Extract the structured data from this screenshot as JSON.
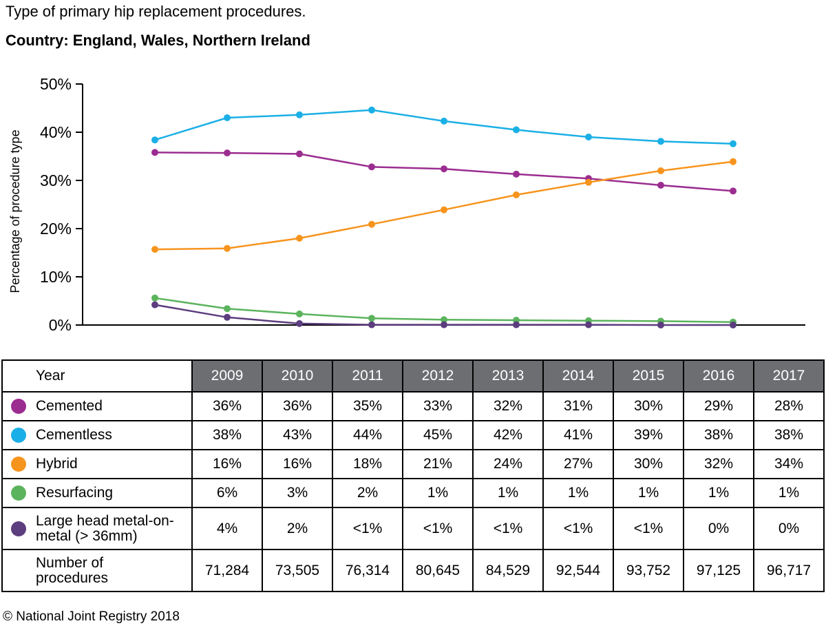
{
  "title": "Type of primary hip replacement procedures.",
  "subtitle": "Country: England, Wales, Northern Ireland",
  "footer": "© National Joint Registry 2018",
  "chart_data": {
    "type": "line",
    "ylabel": "Percentage of procedure type",
    "xlabel": "",
    "ylim": [
      0,
      50
    ],
    "yticks": [
      0,
      10,
      20,
      30,
      40,
      50
    ],
    "ytick_labels": [
      "0%",
      "10%",
      "20%",
      "30%",
      "40%",
      "50%"
    ],
    "x": [
      "2009",
      "2010",
      "2011",
      "2012",
      "2013",
      "2014",
      "2015",
      "2016",
      "2017"
    ],
    "series": [
      {
        "name": "Cemented",
        "color": "#9b2d90",
        "values": [
          35.8,
          35.7,
          35.5,
          32.8,
          32.4,
          31.3,
          30.4,
          29.0,
          27.8
        ]
      },
      {
        "name": "Cementless",
        "color": "#1aafe6",
        "values": [
          38.4,
          43.0,
          43.6,
          44.6,
          42.3,
          40.5,
          39.0,
          38.1,
          37.6
        ]
      },
      {
        "name": "Hybrid",
        "color": "#f7941d",
        "values": [
          15.7,
          15.9,
          18.0,
          20.9,
          23.9,
          27.0,
          29.6,
          32.0,
          33.9
        ]
      },
      {
        "name": "Resurfacing",
        "color": "#5bb45d",
        "values": [
          5.6,
          3.4,
          2.3,
          1.4,
          1.1,
          1.0,
          0.9,
          0.8,
          0.6
        ]
      },
      {
        "name": "Large head metal-on-metal (> 36mm)",
        "color": "#5c3d7e",
        "values": [
          4.2,
          1.6,
          0.3,
          0.05,
          0.05,
          0.05,
          0.05,
          0.0,
          0.0
        ]
      }
    ],
    "grid": false
  },
  "table": {
    "year_header": "Year",
    "years": [
      "2009",
      "2010",
      "2011",
      "2012",
      "2013",
      "2014",
      "2015",
      "2016",
      "2017"
    ],
    "rows": [
      {
        "label": "Cemented",
        "color": "#9b2d90",
        "values": [
          "36%",
          "36%",
          "35%",
          "33%",
          "32%",
          "31%",
          "30%",
          "29%",
          "28%"
        ]
      },
      {
        "label": "Cementless",
        "color": "#1aafe6",
        "values": [
          "38%",
          "43%",
          "44%",
          "45%",
          "42%",
          "41%",
          "39%",
          "38%",
          "38%"
        ]
      },
      {
        "label": "Hybrid",
        "color": "#f7941d",
        "values": [
          "16%",
          "16%",
          "18%",
          "21%",
          "24%",
          "27%",
          "30%",
          "32%",
          "34%"
        ]
      },
      {
        "label": "Resurfacing",
        "color": "#5bb45d",
        "values": [
          "6%",
          "3%",
          "2%",
          "1%",
          "1%",
          "1%",
          "1%",
          "1%",
          "1%"
        ]
      },
      {
        "label_line1": "Large head metal-on-",
        "label_line2": "metal (> 36mm)",
        "color": "#5c3d7e",
        "values": [
          "4%",
          "2%",
          "<1%",
          "<1%",
          "<1%",
          "<1%",
          "<1%",
          "0%",
          "0%"
        ]
      },
      {
        "label_line1": "Number of",
        "label_line2": "procedures",
        "values": [
          "71,284",
          "73,505",
          "76,314",
          "80,645",
          "84,529",
          "92,544",
          "93,752",
          "97,125",
          "96,717"
        ]
      }
    ]
  }
}
